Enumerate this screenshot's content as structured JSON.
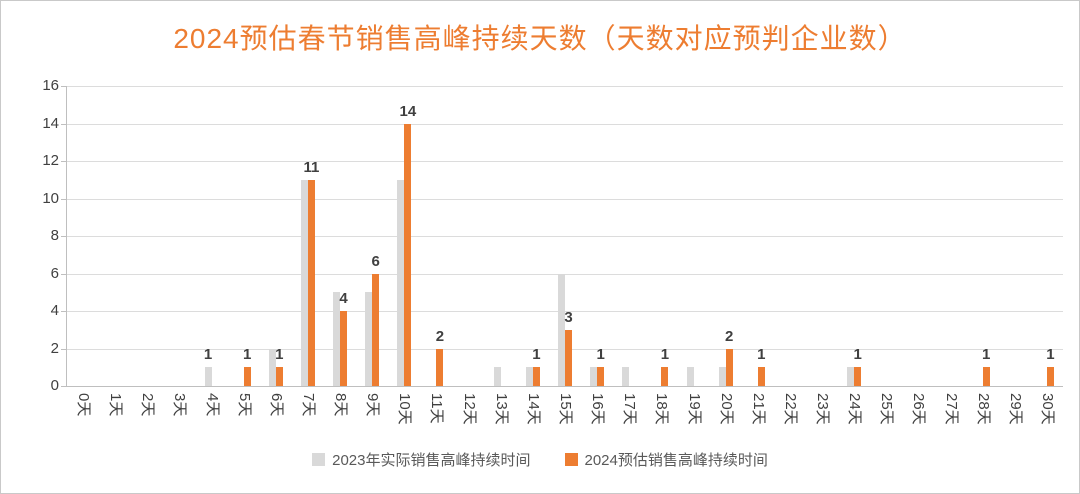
{
  "chart": {
    "title": "2024预估春节销售高峰持续天数（天数对应预判企业数）",
    "title_color": "#ED7D31"
  },
  "chart_data": {
    "type": "bar",
    "title": "2024预估春节销售高峰持续天数（天数对应预判企业数）",
    "categories": [
      "0天",
      "1天",
      "2天",
      "3天",
      "4天",
      "5天",
      "6天",
      "7天",
      "8天",
      "9天",
      "10天",
      "11天",
      "12天",
      "13天",
      "14天",
      "15天",
      "16天",
      "17天",
      "18天",
      "19天",
      "20天",
      "21天",
      "22天",
      "23天",
      "24天",
      "25天",
      "26天",
      "27天",
      "28天",
      "29天",
      "30天"
    ],
    "series": [
      {
        "name": "2023年实际销售高峰持续时间",
        "color": "#D9D9D9",
        "values": [
          0,
          0,
          0,
          0,
          1,
          0,
          2,
          11,
          5,
          5,
          11,
          0,
          0,
          1,
          1,
          6,
          1,
          1,
          0,
          1,
          1,
          0,
          0,
          0,
          1,
          0,
          0,
          0,
          0,
          0,
          0
        ]
      },
      {
        "name": "2024预估销售高峰持续时间",
        "color": "#ED7D31",
        "values": [
          0,
          0,
          0,
          0,
          0,
          1,
          1,
          11,
          4,
          6,
          14,
          2,
          0,
          0,
          1,
          3,
          1,
          0,
          1,
          0,
          2,
          1,
          0,
          0,
          1,
          0,
          0,
          0,
          1,
          0,
          1
        ]
      }
    ],
    "ylim": [
      0,
      16
    ],
    "ytick_step": 2,
    "grid": true,
    "legend_position": "bottom",
    "bar_labels": [
      {
        "index": 4,
        "text": "1",
        "series": 0
      },
      {
        "index": 5,
        "text": "1",
        "series": 1
      },
      {
        "index": 6,
        "text": "1",
        "series": 1
      },
      {
        "index": 7,
        "text": "11",
        "series": 1
      },
      {
        "index": 8,
        "text": "4",
        "series": 1
      },
      {
        "index": 9,
        "text": "6",
        "series": 1
      },
      {
        "index": 10,
        "text": "14",
        "series": 1
      },
      {
        "index": 11,
        "text": "2",
        "series": 1
      },
      {
        "index": 14,
        "text": "1",
        "series": 1
      },
      {
        "index": 15,
        "text": "3",
        "series": 1
      },
      {
        "index": 16,
        "text": "1",
        "series": 1
      },
      {
        "index": 18,
        "text": "1",
        "series": 1
      },
      {
        "index": 20,
        "text": "2",
        "series": 1
      },
      {
        "index": 21,
        "text": "1",
        "series": 1
      },
      {
        "index": 24,
        "text": "1",
        "series": 1
      },
      {
        "index": 28,
        "text": "1",
        "series": 1
      },
      {
        "index": 30,
        "text": "1",
        "series": 1
      }
    ]
  }
}
